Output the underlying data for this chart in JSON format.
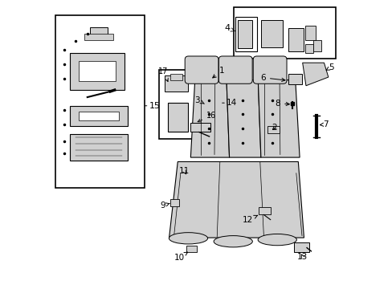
{
  "background_color": "#ffffff",
  "line_color": "#000000",
  "diagram_color": "#d0d0d0",
  "text_color": "#000000"
}
